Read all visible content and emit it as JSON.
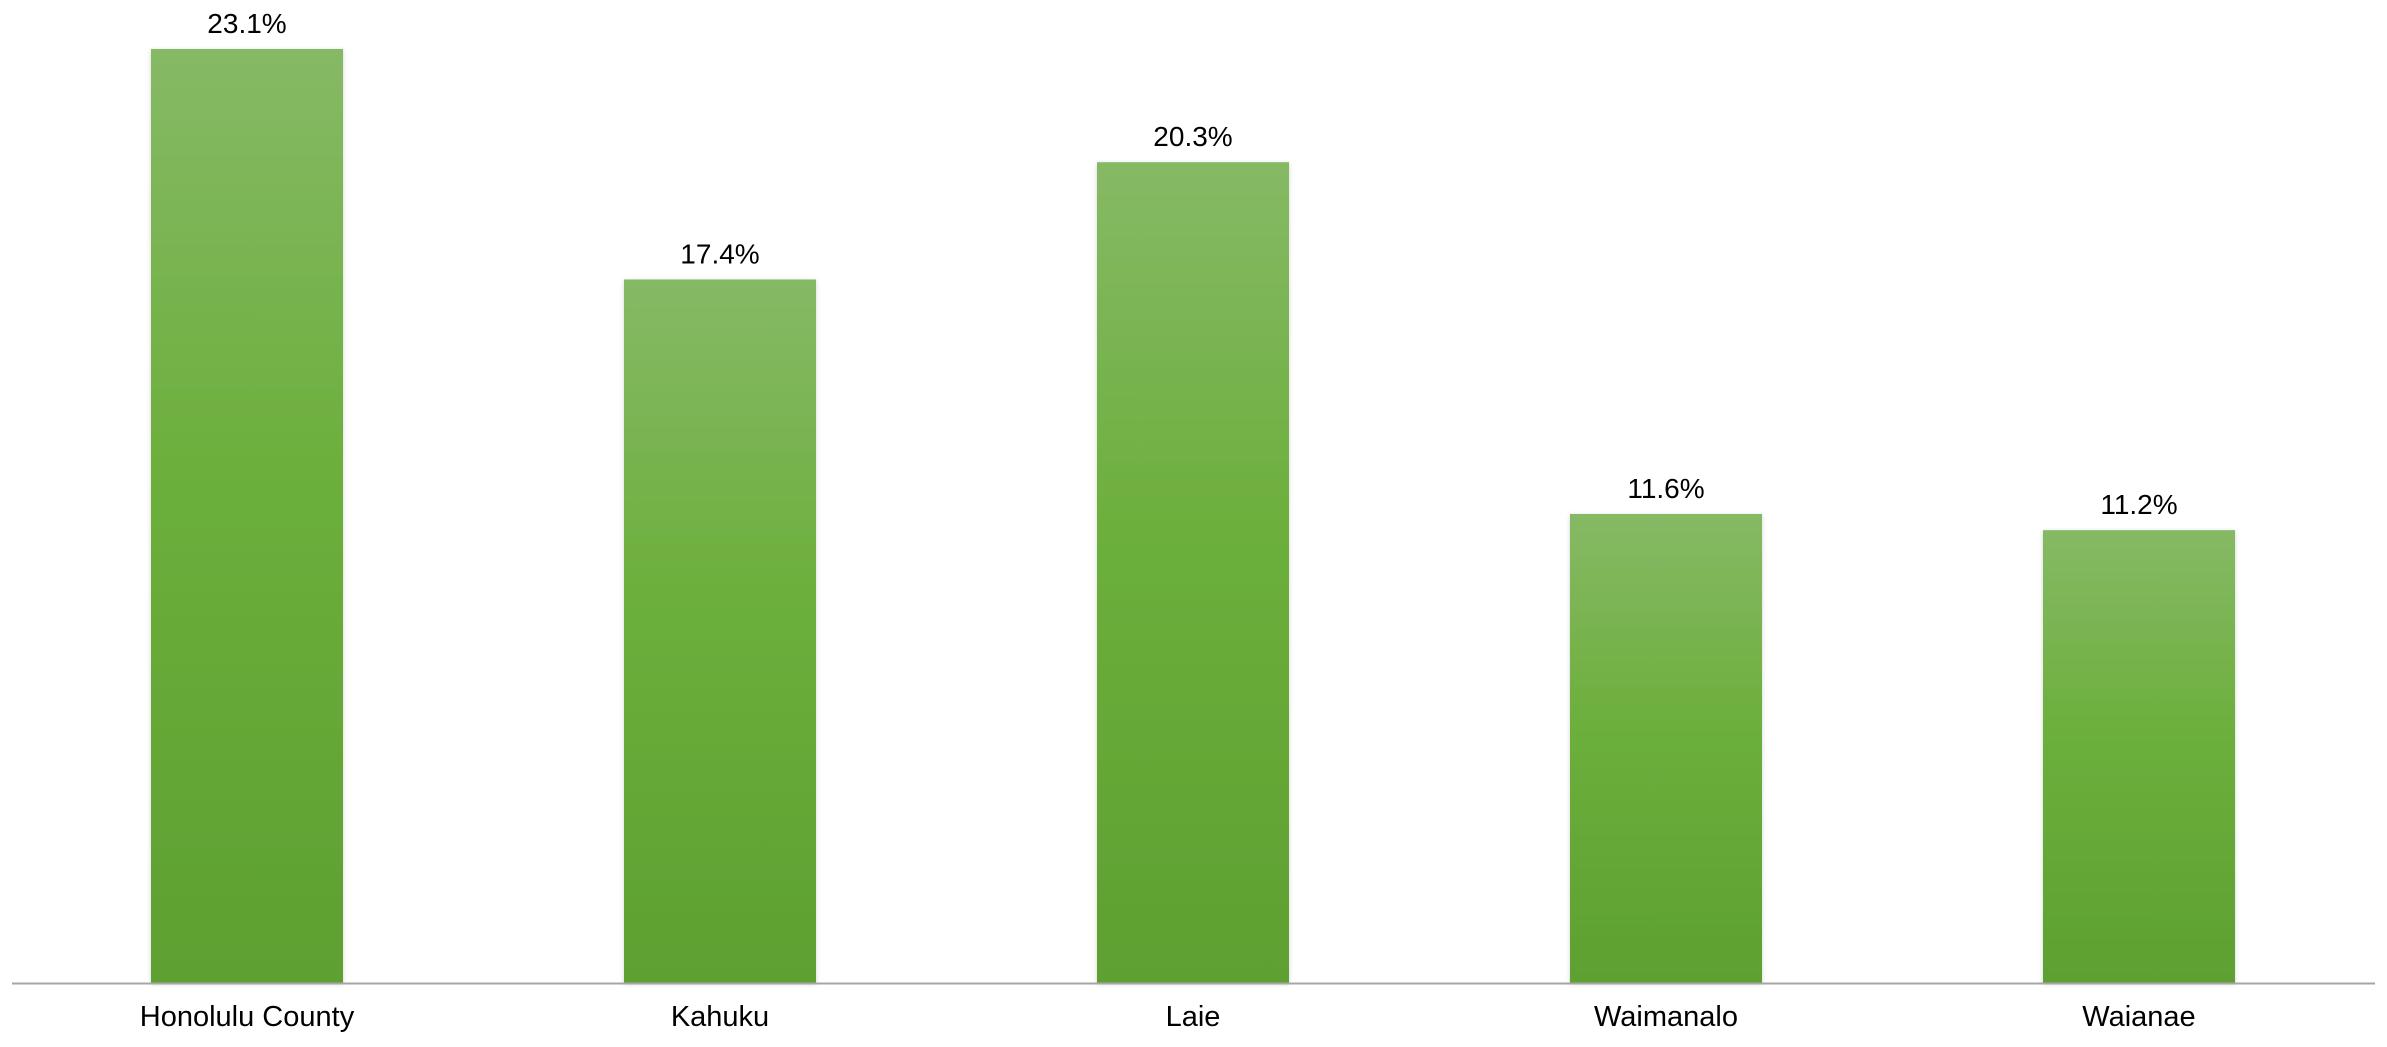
{
  "chart_data": {
    "type": "bar",
    "categories": [
      "Honolulu County",
      "Kahuku",
      "Laie",
      "Waimanalo",
      "Waianae"
    ],
    "values": [
      23.1,
      17.4,
      20.3,
      11.6,
      11.2
    ],
    "data_labels": [
      "23.1%",
      "17.4%",
      "20.3%",
      "11.6%",
      "11.2%"
    ],
    "title": "",
    "xlabel": "",
    "ylabel": "",
    "ylim": [
      0,
      23.1
    ],
    "grid": false,
    "legend": "none",
    "colors": {
      "bar_top": "#86B965",
      "bar_mid": "#6CAF3C",
      "bar_bottom": "#5EA031",
      "axis": "#A6A6A6"
    }
  }
}
